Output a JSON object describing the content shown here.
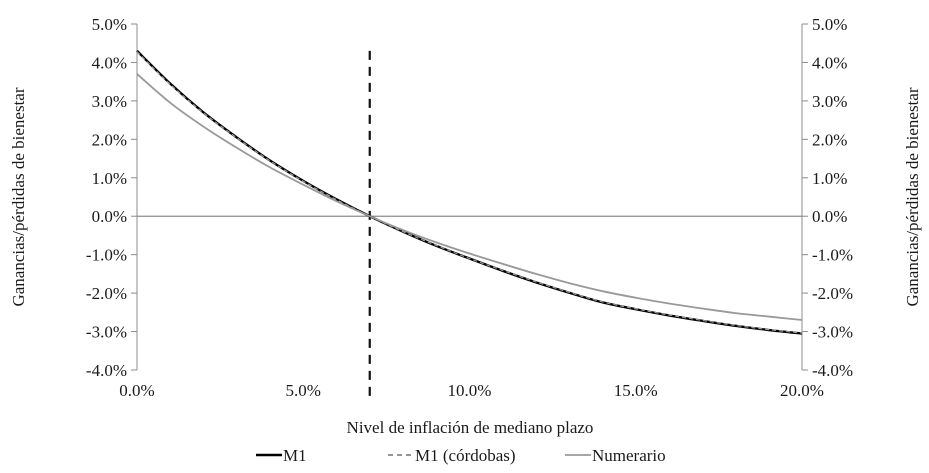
{
  "chart_data": {
    "type": "line",
    "title": "",
    "xlabel": "Nivel de inflación de mediano plazo",
    "ylabel_left": "Ganancias/pérdidas de bienestar",
    "ylabel_right": "Ganancias/pérdidas de bienestar",
    "xlim": [
      0,
      20
    ],
    "ylim": [
      -4,
      5
    ],
    "x_ticks": [
      0,
      5,
      10,
      15,
      20
    ],
    "x_tick_labels": [
      "0.0%",
      "5.0%",
      "10.0%",
      "15.0%",
      "20.0%"
    ],
    "y_ticks": [
      5,
      4,
      3,
      2,
      1,
      0,
      -1,
      -2,
      -3,
      -4
    ],
    "y_tick_labels": [
      "5.0%",
      "4.0%",
      "3.0%",
      "2.0%",
      "1.0%",
      "0.0%",
      "-1.0%",
      "-2.0%",
      "-3.0%",
      "-4.0%"
    ],
    "vertical_reference_x": 7,
    "zero_line": true,
    "grid": false,
    "legend_position": "bottom",
    "x": [
      0,
      1,
      2,
      3,
      4,
      5,
      6,
      7,
      8,
      9,
      10,
      11,
      12,
      13,
      14,
      15,
      16,
      17,
      18,
      19,
      20
    ],
    "series": [
      {
        "name": "M1",
        "color": "#000000",
        "style": "solid",
        "values": [
          4.3,
          3.45,
          2.7,
          2.05,
          1.45,
          0.92,
          0.44,
          0.0,
          -0.4,
          -0.77,
          -1.1,
          -1.42,
          -1.72,
          -1.99,
          -2.24,
          -2.42,
          -2.58,
          -2.72,
          -2.85,
          -2.96,
          -3.05
        ]
      },
      {
        "name": "M1 (córdobas)",
        "color": "#555555",
        "style": "dashed",
        "values": [
          4.28,
          3.43,
          2.69,
          2.04,
          1.44,
          0.91,
          0.43,
          0.0,
          -0.4,
          -0.76,
          -1.1,
          -1.41,
          -1.71,
          -1.98,
          -2.23,
          -2.41,
          -2.57,
          -2.71,
          -2.84,
          -2.95,
          -3.04
        ]
      },
      {
        "name": "Numerario",
        "color": "#999999",
        "style": "solid",
        "values": [
          3.7,
          2.95,
          2.33,
          1.78,
          1.27,
          0.82,
          0.39,
          0.0,
          -0.36,
          -0.68,
          -0.97,
          -1.24,
          -1.5,
          -1.74,
          -1.95,
          -2.12,
          -2.27,
          -2.4,
          -2.52,
          -2.61,
          -2.7
        ]
      }
    ]
  }
}
